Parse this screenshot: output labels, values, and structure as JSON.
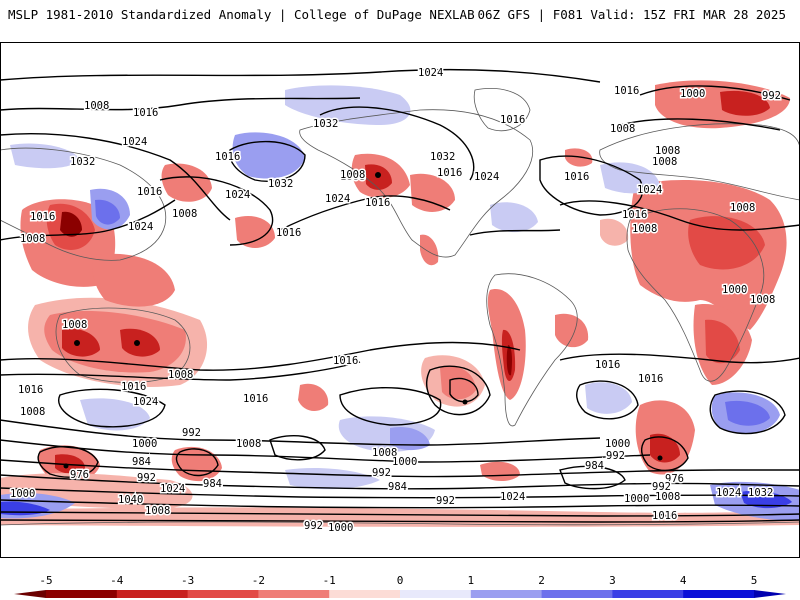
{
  "header": {
    "title": "MSLP 1981-2010 Standardized Anomaly | College of DuPage NEXLAB",
    "run_info": "06Z GFS | F081 Valid: 15Z FRI MAR 28 2025"
  },
  "colorbar": {
    "ticks": [
      "-5",
      "-4",
      "-3",
      "-2",
      "-1",
      "0",
      "1",
      "2",
      "3",
      "4",
      "5"
    ],
    "colors": [
      "#8b0000",
      "#c8211f",
      "#e24a46",
      "#ef7d77",
      "#f6b3ab",
      "#ffffff",
      "#c9cbf3",
      "#9a9ef0",
      "#6c70ec",
      "#3a3fe6",
      "#0a10d8"
    ]
  },
  "isobar_labels": [
    "1024",
    "1000",
    "992",
    "1016",
    "1008",
    "1016",
    "1024",
    "1032",
    "1008",
    "1016",
    "1032",
    "1016",
    "1008",
    "1032",
    "1016",
    "1024",
    "1008",
    "1016",
    "1024",
    "1032",
    "1024",
    "1008",
    "1016",
    "1008",
    "1016",
    "1024",
    "1016",
    "1008",
    "1024",
    "1008",
    "1016",
    "1016",
    "1008",
    "1008",
    "1000",
    "1008",
    "1008",
    "1016",
    "1016",
    "1008",
    "1016",
    "1024",
    "1016",
    "1008",
    "1024",
    "1016",
    "1016",
    "992",
    "1000",
    "1008",
    "1000",
    "1008",
    "984",
    "976",
    "992",
    "1024",
    "984",
    "1040",
    "1000",
    "1008",
    "992",
    "984",
    "1000",
    "992",
    "984",
    "992",
    "976",
    "1000",
    "992",
    "1008",
    "1016",
    "1024",
    "1032",
    "992",
    "1000"
  ],
  "colors": {
    "land_border": "#5a5a5a",
    "frame": "#000000"
  }
}
